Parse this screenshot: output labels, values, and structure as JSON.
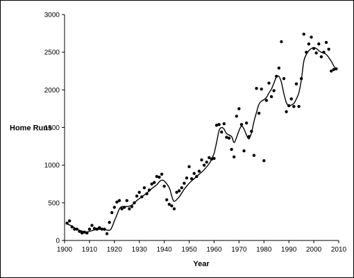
{
  "chart_data": {
    "type": "scatter",
    "title": "",
    "xlabel": "Year",
    "ylabel": "Home Runs",
    "xlim": [
      1900,
      2010
    ],
    "ylim": [
      0,
      3000
    ],
    "x_ticks": [
      1900,
      1910,
      1920,
      1930,
      1940,
      1950,
      1960,
      1970,
      1980,
      1990,
      2000,
      2010
    ],
    "y_ticks": [
      0,
      500,
      1000,
      1500,
      2000,
      2500,
      3000
    ],
    "grid": false,
    "legend": "none",
    "series": [
      {
        "kind": "points",
        "x": [
          1901,
          1902,
          1903,
          1904,
          1905,
          1906,
          1907,
          1908,
          1909,
          1910,
          1911,
          1912,
          1913,
          1914,
          1915,
          1916,
          1917,
          1918,
          1919,
          1920,
          1921,
          1922,
          1923,
          1924,
          1925,
          1926,
          1927,
          1928,
          1929,
          1930,
          1931,
          1932,
          1933,
          1934,
          1935,
          1936,
          1937,
          1938,
          1939,
          1940,
          1941,
          1942,
          1943,
          1944,
          1945,
          1946,
          1947,
          1948,
          1949,
          1950,
          1951,
          1952,
          1953,
          1954,
          1955,
          1956,
          1957,
          1958,
          1959,
          1960,
          1961,
          1962,
          1963,
          1964,
          1965,
          1966,
          1967,
          1968,
          1969,
          1970,
          1971,
          1972,
          1973,
          1974,
          1975,
          1976,
          1977,
          1978,
          1979,
          1980,
          1981,
          1982,
          1983,
          1984,
          1985,
          1986,
          1987,
          1988,
          1989,
          1990,
          1991,
          1992,
          1993,
          1994,
          1995,
          1996,
          1997,
          1998,
          1999,
          2000,
          2001,
          2002,
          2003,
          2004,
          2005,
          2006,
          2007,
          2008,
          2009
        ],
        "y": [
          230,
          260,
          180,
          150,
          150,
          120,
          100,
          110,
          100,
          150,
          200,
          160,
          150,
          170,
          150,
          150,
          90,
          240,
          370,
          440,
          510,
          530,
          420,
          440,
          530,
          420,
          450,
          500,
          590,
          640,
          580,
          700,
          620,
          670,
          750,
          770,
          850,
          840,
          880,
          720,
          540,
          480,
          460,
          420,
          640,
          660,
          700,
          760,
          830,
          980,
          820,
          890,
          850,
          920,
          1070,
          1000,
          1040,
          1100,
          1080,
          1090,
          1530,
          1540,
          1440,
          1550,
          1370,
          1360,
          1210,
          1110,
          1650,
          1750,
          1540,
          1190,
          1560,
          1380,
          1450,
          1130,
          2020,
          1690,
          2010,
          1060,
          1860,
          2090,
          1910,
          1990,
          2180,
          2290,
          2640,
          2150,
          1710,
          1790,
          1880,
          1780,
          2080,
          1780,
          2150,
          2740,
          2500,
          2610,
          2700,
          2550,
          2490,
          2610,
          2440,
          2500,
          2630,
          2540,
          2250,
          2270,
          2280
        ]
      },
      {
        "kind": "smooth-line",
        "x": [
          1901,
          1903,
          1905,
          1908,
          1910,
          1912,
          1915,
          1918,
          1919,
          1920,
          1921,
          1922,
          1923,
          1925,
          1927,
          1929,
          1931,
          1933,
          1935,
          1937,
          1938,
          1939,
          1940,
          1942,
          1943,
          1944,
          1946,
          1948,
          1950,
          1952,
          1954,
          1956,
          1958,
          1959,
          1960,
          1961,
          1962,
          1963,
          1964,
          1965,
          1967,
          1968,
          1969,
          1970,
          1971,
          1972,
          1973,
          1974,
          1975,
          1976,
          1977,
          1978,
          1979,
          1980,
          1981,
          1982,
          1983,
          1984,
          1985,
          1986,
          1987,
          1988,
          1989,
          1990,
          1991,
          1992,
          1993,
          1994,
          1995,
          1996,
          1997,
          1998,
          1999,
          2000,
          2001,
          2002,
          2003,
          2004,
          2005,
          2006,
          2007,
          2008,
          2009
        ],
        "y": [
          220,
          190,
          150,
          115,
          120,
          140,
          150,
          135,
          175,
          260,
          340,
          420,
          450,
          450,
          470,
          530,
          580,
          630,
          690,
          740,
          780,
          800,
          790,
          700,
          590,
          520,
          580,
          680,
          760,
          820,
          880,
          940,
          1020,
          1080,
          1160,
          1300,
          1460,
          1500,
          1480,
          1420,
          1380,
          1300,
          1370,
          1460,
          1520,
          1480,
          1400,
          1350,
          1430,
          1580,
          1700,
          1810,
          1850,
          1870,
          1900,
          1960,
          2010,
          2090,
          2170,
          2180,
          2100,
          1950,
          1830,
          1790,
          1800,
          1820,
          1880,
          1960,
          2130,
          2380,
          2470,
          2520,
          2550,
          2560,
          2550,
          2520,
          2500,
          2490,
          2470,
          2430,
          2380,
          2320,
          2270
        ]
      }
    ]
  }
}
